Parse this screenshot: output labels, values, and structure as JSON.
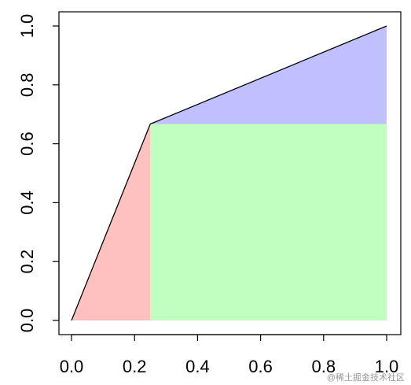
{
  "chart_data": {
    "type": "area",
    "x": [
      0,
      0.25,
      1
    ],
    "values": [
      0,
      0.667,
      1
    ],
    "line_color": "#000000",
    "fill_colors": [
      "#ffc0c0",
      "#c0ffc0",
      "#c0c0ff"
    ],
    "xlim": [
      0,
      1
    ],
    "ylim": [
      0,
      1
    ],
    "xticks": [
      {
        "value": 0,
        "label": "0.0"
      },
      0.2,
      0.4,
      0.6,
      0.8,
      {
        "value": 1,
        "label": "1.0"
      }
    ],
    "yticks": [
      {
        "value": 0,
        "label": "0.0"
      },
      0.2,
      0.4,
      0.6,
      0.8,
      {
        "value": 1,
        "label": "1.0"
      }
    ],
    "watermark": "@稀土掘金技术社区"
  }
}
